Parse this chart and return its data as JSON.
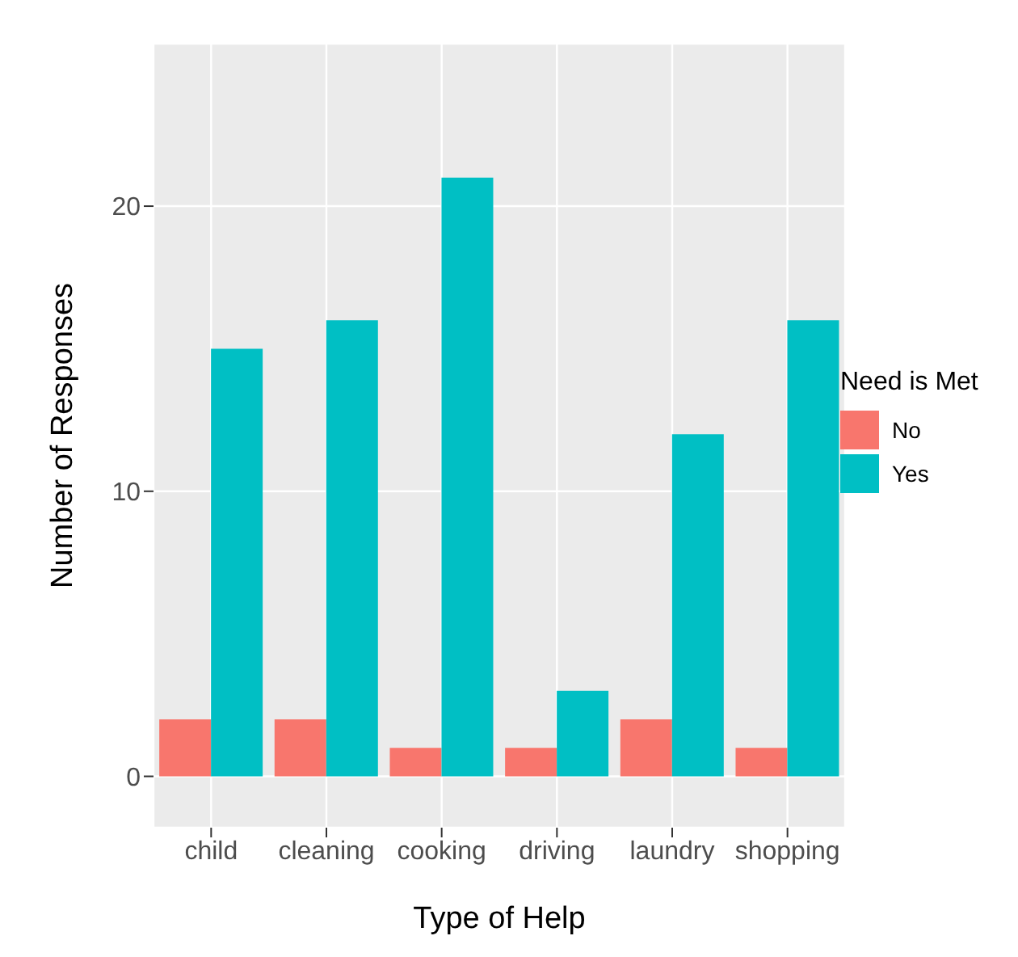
{
  "chart_data": {
    "type": "bar",
    "xlabel": "Type of Help",
    "ylabel": "Number of Responses",
    "legend_title": "Need is Met",
    "categories": [
      "child",
      "cleaning",
      "cooking",
      "driving",
      "laundry",
      "shopping"
    ],
    "series": [
      {
        "name": "No",
        "color": "#f8766d",
        "values": [
          2,
          2,
          1,
          1,
          2,
          1
        ]
      },
      {
        "name": "Yes",
        "color": "#00bfc4",
        "values": [
          15,
          16,
          21,
          3,
          12,
          16
        ]
      }
    ],
    "ylim": [
      -1.8,
      25.7
    ],
    "yticks": [
      0,
      10,
      20
    ],
    "grid": true,
    "legend": "right"
  }
}
